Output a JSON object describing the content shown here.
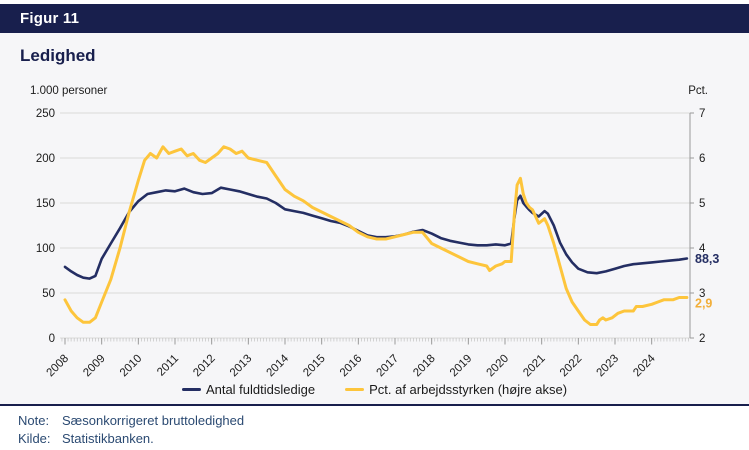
{
  "header": {
    "figure_label": "Figur 11"
  },
  "title": "Ledighed",
  "notes": {
    "note_label": "Note:",
    "note_text": "Sæsonkorrigeret bruttoledighed",
    "kilde_label": "Kilde:",
    "kilde_text": "Statistikbanken."
  },
  "colors": {
    "navy": "#181f4d",
    "line_navy": "#242e63",
    "line_yellow": "#fdc53c",
    "yellow_label": "#f2ae38",
    "grid": "#d9d9d9",
    "axis": "#9a9a9a",
    "minor_tick": "#c2c2c2",
    "tick_text": "#1c1c1c"
  },
  "chart_data": {
    "type": "line",
    "title": "Ledighed",
    "grid": true,
    "legend_position": "bottom-center",
    "x_ticks": [
      2008,
      2009,
      2010,
      2011,
      2012,
      2013,
      2014,
      2015,
      2016,
      2017,
      2018,
      2019,
      2020,
      2021,
      2022,
      2023,
      2024
    ],
    "left_axis": {
      "label": "1.000 personer",
      "ticks": [
        0,
        50,
        100,
        150,
        200,
        250
      ],
      "range": [
        0,
        250
      ]
    },
    "right_axis": {
      "label": "Pct.",
      "ticks": [
        2,
        3,
        4,
        5,
        6,
        7
      ],
      "range": [
        2,
        7
      ]
    },
    "series": [
      {
        "name": "Antal fuldtidsledige",
        "axis": "left",
        "color": "#242e63",
        "end_label": "88,3",
        "points": [
          [
            2008.0,
            79
          ],
          [
            2008.17,
            74
          ],
          [
            2008.33,
            70
          ],
          [
            2008.5,
            67
          ],
          [
            2008.67,
            66
          ],
          [
            2008.83,
            69
          ],
          [
            2009.0,
            88
          ],
          [
            2009.25,
            105
          ],
          [
            2009.5,
            122
          ],
          [
            2009.75,
            140
          ],
          [
            2010.0,
            152
          ],
          [
            2010.25,
            160
          ],
          [
            2010.5,
            162
          ],
          [
            2010.75,
            164
          ],
          [
            2011.0,
            163
          ],
          [
            2011.25,
            166
          ],
          [
            2011.5,
            162
          ],
          [
            2011.75,
            160
          ],
          [
            2012.0,
            161
          ],
          [
            2012.25,
            167
          ],
          [
            2012.5,
            165
          ],
          [
            2012.75,
            163
          ],
          [
            2013.0,
            160
          ],
          [
            2013.25,
            157
          ],
          [
            2013.5,
            155
          ],
          [
            2013.75,
            150
          ],
          [
            2014.0,
            143
          ],
          [
            2014.25,
            141
          ],
          [
            2014.5,
            139
          ],
          [
            2014.75,
            136
          ],
          [
            2015.0,
            133
          ],
          [
            2015.25,
            130
          ],
          [
            2015.5,
            128
          ],
          [
            2015.75,
            124
          ],
          [
            2016.0,
            119
          ],
          [
            2016.25,
            114
          ],
          [
            2016.5,
            112
          ],
          [
            2016.75,
            112
          ],
          [
            2017.0,
            113
          ],
          [
            2017.25,
            115
          ],
          [
            2017.5,
            118
          ],
          [
            2017.75,
            120
          ],
          [
            2018.0,
            116
          ],
          [
            2018.25,
            111
          ],
          [
            2018.5,
            108
          ],
          [
            2018.75,
            106
          ],
          [
            2019.0,
            104
          ],
          [
            2019.25,
            103
          ],
          [
            2019.5,
            103
          ],
          [
            2019.75,
            104
          ],
          [
            2020.0,
            103
          ],
          [
            2020.17,
            105
          ],
          [
            2020.25,
            132
          ],
          [
            2020.33,
            153
          ],
          [
            2020.42,
            158
          ],
          [
            2020.5,
            150
          ],
          [
            2020.58,
            146
          ],
          [
            2020.67,
            142
          ],
          [
            2020.75,
            139
          ],
          [
            2020.92,
            135
          ],
          [
            2021.08,
            141
          ],
          [
            2021.17,
            138
          ],
          [
            2021.33,
            125
          ],
          [
            2021.5,
            106
          ],
          [
            2021.67,
            93
          ],
          [
            2021.83,
            84
          ],
          [
            2022.0,
            77
          ],
          [
            2022.25,
            73
          ],
          [
            2022.5,
            72
          ],
          [
            2022.75,
            74
          ],
          [
            2023.0,
            77
          ],
          [
            2023.25,
            80
          ],
          [
            2023.5,
            82
          ],
          [
            2023.75,
            83
          ],
          [
            2024.0,
            84
          ],
          [
            2024.25,
            85
          ],
          [
            2024.5,
            86
          ],
          [
            2024.75,
            87
          ],
          [
            2024.96,
            88.3
          ]
        ]
      },
      {
        "name": "Pct. af arbejdsstyrken (højre akse)",
        "axis": "right",
        "color": "#fdc53c",
        "end_label": "2,9",
        "points": [
          [
            2008.0,
            2.85
          ],
          [
            2008.17,
            2.6
          ],
          [
            2008.33,
            2.45
          ],
          [
            2008.5,
            2.35
          ],
          [
            2008.67,
            2.35
          ],
          [
            2008.83,
            2.45
          ],
          [
            2009.0,
            2.8
          ],
          [
            2009.25,
            3.3
          ],
          [
            2009.5,
            4.0
          ],
          [
            2009.75,
            4.8
          ],
          [
            2010.0,
            5.5
          ],
          [
            2010.17,
            5.95
          ],
          [
            2010.33,
            6.1
          ],
          [
            2010.5,
            6.0
          ],
          [
            2010.67,
            6.25
          ],
          [
            2010.83,
            6.1
          ],
          [
            2011.0,
            6.15
          ],
          [
            2011.17,
            6.2
          ],
          [
            2011.33,
            6.05
          ],
          [
            2011.5,
            6.1
          ],
          [
            2011.67,
            5.95
          ],
          [
            2011.83,
            5.9
          ],
          [
            2012.0,
            6.0
          ],
          [
            2012.17,
            6.1
          ],
          [
            2012.33,
            6.25
          ],
          [
            2012.5,
            6.2
          ],
          [
            2012.67,
            6.1
          ],
          [
            2012.83,
            6.15
          ],
          [
            2013.0,
            6.0
          ],
          [
            2013.25,
            5.95
          ],
          [
            2013.5,
            5.9
          ],
          [
            2013.75,
            5.6
          ],
          [
            2014.0,
            5.3
          ],
          [
            2014.25,
            5.15
          ],
          [
            2014.5,
            5.05
          ],
          [
            2014.75,
            4.9
          ],
          [
            2015.0,
            4.8
          ],
          [
            2015.25,
            4.7
          ],
          [
            2015.5,
            4.6
          ],
          [
            2015.75,
            4.5
          ],
          [
            2016.0,
            4.35
          ],
          [
            2016.25,
            4.25
          ],
          [
            2016.5,
            4.2
          ],
          [
            2016.75,
            4.2
          ],
          [
            2017.0,
            4.25
          ],
          [
            2017.25,
            4.3
          ],
          [
            2017.5,
            4.35
          ],
          [
            2017.75,
            4.35
          ],
          [
            2018.0,
            4.1
          ],
          [
            2018.25,
            4.0
          ],
          [
            2018.5,
            3.9
          ],
          [
            2018.75,
            3.8
          ],
          [
            2019.0,
            3.7
          ],
          [
            2019.25,
            3.65
          ],
          [
            2019.5,
            3.6
          ],
          [
            2019.58,
            3.5
          ],
          [
            2019.75,
            3.6
          ],
          [
            2019.92,
            3.65
          ],
          [
            2020.0,
            3.7
          ],
          [
            2020.17,
            3.7
          ],
          [
            2020.25,
            4.7
          ],
          [
            2020.33,
            5.4
          ],
          [
            2020.42,
            5.55
          ],
          [
            2020.5,
            5.2
          ],
          [
            2020.58,
            5.0
          ],
          [
            2020.67,
            4.9
          ],
          [
            2020.75,
            4.85
          ],
          [
            2020.92,
            4.55
          ],
          [
            2021.08,
            4.65
          ],
          [
            2021.17,
            4.5
          ],
          [
            2021.33,
            4.1
          ],
          [
            2021.5,
            3.6
          ],
          [
            2021.67,
            3.1
          ],
          [
            2021.83,
            2.8
          ],
          [
            2022.0,
            2.6
          ],
          [
            2022.17,
            2.4
          ],
          [
            2022.33,
            2.3
          ],
          [
            2022.5,
            2.3
          ],
          [
            2022.58,
            2.4
          ],
          [
            2022.67,
            2.45
          ],
          [
            2022.75,
            2.4
          ],
          [
            2022.92,
            2.45
          ],
          [
            2023.08,
            2.55
          ],
          [
            2023.25,
            2.6
          ],
          [
            2023.5,
            2.6
          ],
          [
            2023.58,
            2.7
          ],
          [
            2023.75,
            2.7
          ],
          [
            2024.0,
            2.75
          ],
          [
            2024.17,
            2.8
          ],
          [
            2024.33,
            2.85
          ],
          [
            2024.58,
            2.85
          ],
          [
            2024.75,
            2.9
          ],
          [
            2024.96,
            2.9
          ]
        ]
      }
    ]
  }
}
